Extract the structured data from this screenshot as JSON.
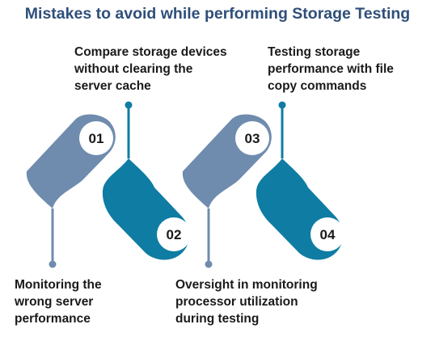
{
  "title": "Mistakes to avoid while performing Storage Testing",
  "colors": {
    "title": "#2f4f7a",
    "text": "#1a1a1a",
    "steel_blue": "#6f8cae",
    "teal_blue": "#0f7ca3",
    "badge": "#ffffff"
  },
  "steps": [
    {
      "number": "01",
      "text": "Monitoring the\nwrong server\nperformance",
      "color": "#6f8cae"
    },
    {
      "number": "02",
      "text": "Compare storage devices\nwithout clearing the\nserver cache",
      "color": "#0f7ca3"
    },
    {
      "number": "03",
      "text": "Oversight in monitoring\nprocessor utilization\nduring testing",
      "color": "#6f8cae"
    },
    {
      "number": "04",
      "text": "Testing storage\nperformance with file\ncopy commands",
      "color": "#0f7ca3"
    }
  ]
}
